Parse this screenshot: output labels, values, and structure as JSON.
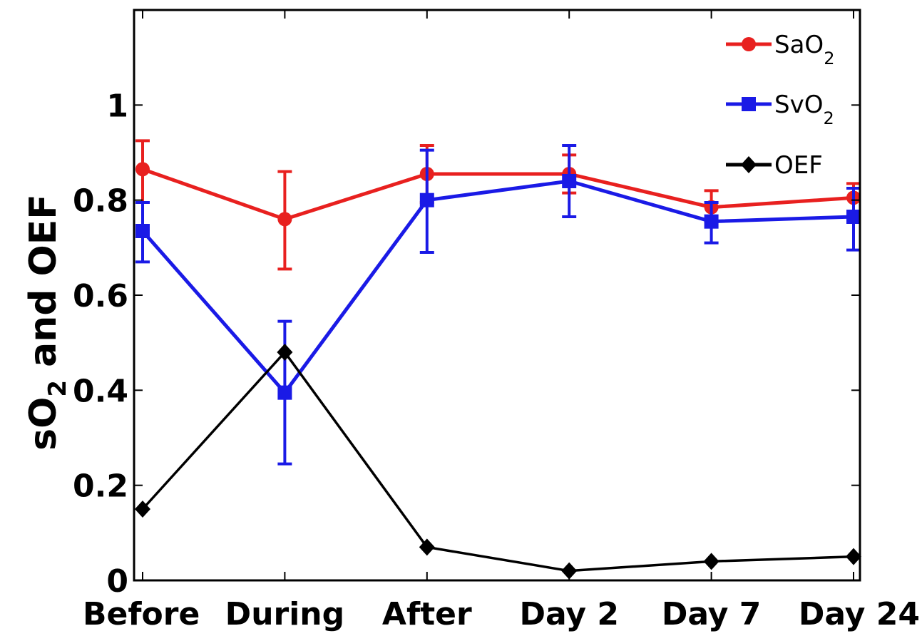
{
  "chart_data": {
    "type": "line",
    "categories": [
      "Before",
      "During",
      "After",
      "Day 2",
      "Day 7",
      "Day 24"
    ],
    "ylabel": {
      "main": "sO",
      "sub": "2",
      "rest": " and OEF"
    },
    "ylim": [
      0,
      1.2
    ],
    "yticks": [
      0,
      0.2,
      0.4,
      0.6,
      0.8,
      1
    ],
    "ytick_labels": [
      "0",
      "0.2",
      "0.4",
      "0.6",
      "0.8",
      "1"
    ],
    "grid": false,
    "legend_position": "top-right",
    "series": [
      {
        "name": "SaO2",
        "label_main": "SaO",
        "label_sub": "2",
        "color": "#e8201f",
        "marker": "circle",
        "values": [
          0.865,
          0.76,
          0.855,
          0.855,
          0.785,
          0.805
        ],
        "err_upper": [
          0.925,
          0.86,
          0.915,
          0.895,
          0.82,
          0.835
        ],
        "err_lower": [
          0.795,
          0.655,
          0.795,
          0.815,
          0.755,
          0.775
        ]
      },
      {
        "name": "SvO2",
        "label_main": "SvO",
        "label_sub": "2",
        "color": "#1a1ae6",
        "marker": "square",
        "values": [
          0.735,
          0.395,
          0.8,
          0.84,
          0.755,
          0.765
        ],
        "err_upper": [
          0.795,
          0.545,
          0.905,
          0.915,
          0.795,
          0.825
        ],
        "err_lower": [
          0.67,
          0.245,
          0.69,
          0.765,
          0.71,
          0.695
        ]
      },
      {
        "name": "OEF",
        "label_main": "OEF",
        "label_sub": "",
        "color": "#000000",
        "marker": "diamond",
        "values": [
          0.15,
          0.48,
          0.07,
          0.02,
          0.04,
          0.05
        ]
      }
    ]
  }
}
